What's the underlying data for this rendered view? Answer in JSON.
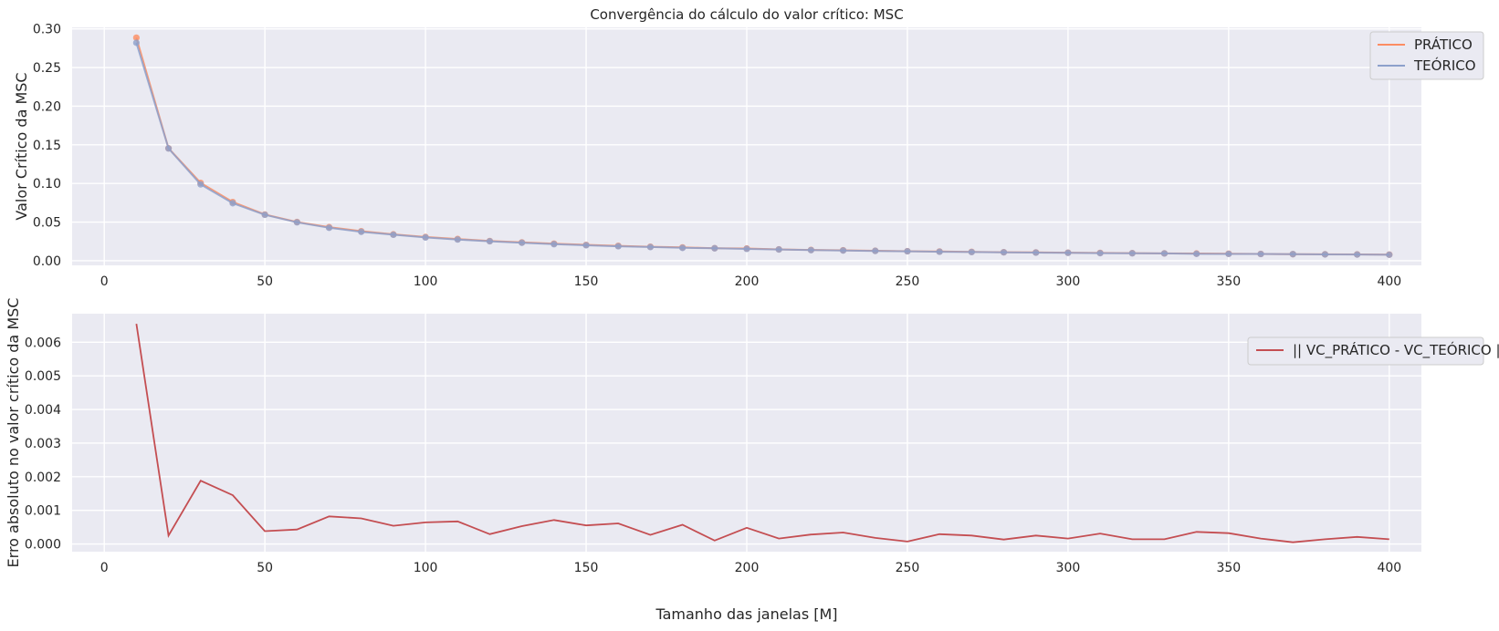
{
  "chart_data": [
    {
      "type": "line",
      "title": "Convergência do cálculo do valor crítico: MSC",
      "xlabel": "",
      "ylabel": "Valor Crítico da MSC",
      "xlim": [
        -10,
        410
      ],
      "ylim": [
        -0.006,
        0.302
      ],
      "xticks": [
        0,
        50,
        100,
        150,
        200,
        250,
        300,
        350,
        400
      ],
      "yticks": [
        0.0,
        0.05,
        0.1,
        0.15,
        0.2,
        0.25,
        0.3
      ],
      "ytick_labels": [
        "0.00",
        "0.05",
        "0.10",
        "0.15",
        "0.20",
        "0.25",
        "0.30"
      ],
      "grid": true,
      "legend": "top-right",
      "x": [
        10,
        20,
        30,
        40,
        50,
        60,
        70,
        80,
        90,
        100,
        110,
        120,
        130,
        140,
        150,
        160,
        170,
        180,
        190,
        200,
        210,
        220,
        230,
        240,
        250,
        260,
        270,
        280,
        290,
        300,
        310,
        320,
        330,
        340,
        350,
        360,
        370,
        380,
        390,
        400
      ],
      "series": [
        {
          "name": "PRÁTICO",
          "color": "#fc8d62",
          "values": [
            0.2886,
            0.1455,
            0.1007,
            0.0759,
            0.0598,
            0.0501,
            0.0434,
            0.0382,
            0.0341,
            0.0307,
            0.0281,
            0.0255,
            0.0237,
            0.0221,
            0.0205,
            0.0193,
            0.0181,
            0.0172,
            0.0162,
            0.0158,
            0.0147,
            0.014,
            0.0135,
            0.0129,
            0.0123,
            0.0119,
            0.0115,
            0.011,
            0.0107,
            0.0104,
            0.0101,
            0.0098,
            0.0095,
            0.0093,
            0.0091,
            0.0088,
            0.0085,
            0.0083,
            0.0082,
            0.0079
          ]
        },
        {
          "name": "TEÓRICO",
          "color": "#8da0cb",
          "values": [
            0.2821,
            0.1453,
            0.0988,
            0.0744,
            0.0594,
            0.0497,
            0.0426,
            0.0374,
            0.0336,
            0.0301,
            0.0274,
            0.0252,
            0.0232,
            0.0214,
            0.02,
            0.0187,
            0.0177,
            0.0166,
            0.0161,
            0.0153,
            0.0145,
            0.0137,
            0.0132,
            0.0127,
            0.0122,
            0.0116,
            0.0112,
            0.0109,
            0.0105,
            0.0102,
            0.0098,
            0.0096,
            0.0094,
            0.0089,
            0.0088,
            0.0087,
            0.0085,
            0.0082,
            0.008,
            0.0077
          ]
        }
      ]
    },
    {
      "type": "line",
      "title": "",
      "xlabel": "Tamanho das janelas [M]",
      "ylabel": "Erro absoluto no valor crítico da MSC",
      "xlim": [
        -10,
        410
      ],
      "ylim": [
        -0.00023,
        0.00685
      ],
      "xticks": [
        0,
        50,
        100,
        150,
        200,
        250,
        300,
        350,
        400
      ],
      "yticks": [
        0.0,
        0.001,
        0.002,
        0.003,
        0.004,
        0.005,
        0.006
      ],
      "ytick_labels": [
        "0.000",
        "0.001",
        "0.002",
        "0.003",
        "0.004",
        "0.005",
        "0.006"
      ],
      "grid": true,
      "legend": "top-right",
      "x": [
        10,
        20,
        30,
        40,
        50,
        60,
        70,
        80,
        90,
        100,
        110,
        120,
        130,
        140,
        150,
        160,
        170,
        180,
        190,
        200,
        210,
        220,
        230,
        240,
        250,
        260,
        270,
        280,
        290,
        300,
        310,
        320,
        330,
        340,
        350,
        360,
        370,
        380,
        390,
        400
      ],
      "series": [
        {
          "name": "|| VC_PRÁTICO - VC_TEÓRICO ||",
          "color": "#c44e52",
          "values": [
            0.00655,
            0.00025,
            0.00188,
            0.00145,
            0.00038,
            0.00043,
            0.00082,
            0.00076,
            0.00054,
            0.00064,
            0.00067,
            0.00029,
            0.00053,
            0.00071,
            0.00055,
            0.00061,
            0.00027,
            0.00057,
            0.0001,
            0.00048,
            0.00016,
            0.00028,
            0.00034,
            0.00018,
            7e-05,
            0.00029,
            0.00025,
            0.00013,
            0.00025,
            0.00016,
            0.00031,
            0.00014,
            0.00014,
            0.00036,
            0.00032,
            0.00016,
            5e-05,
            0.00014,
            0.00021,
            0.00014
          ]
        }
      ]
    }
  ]
}
